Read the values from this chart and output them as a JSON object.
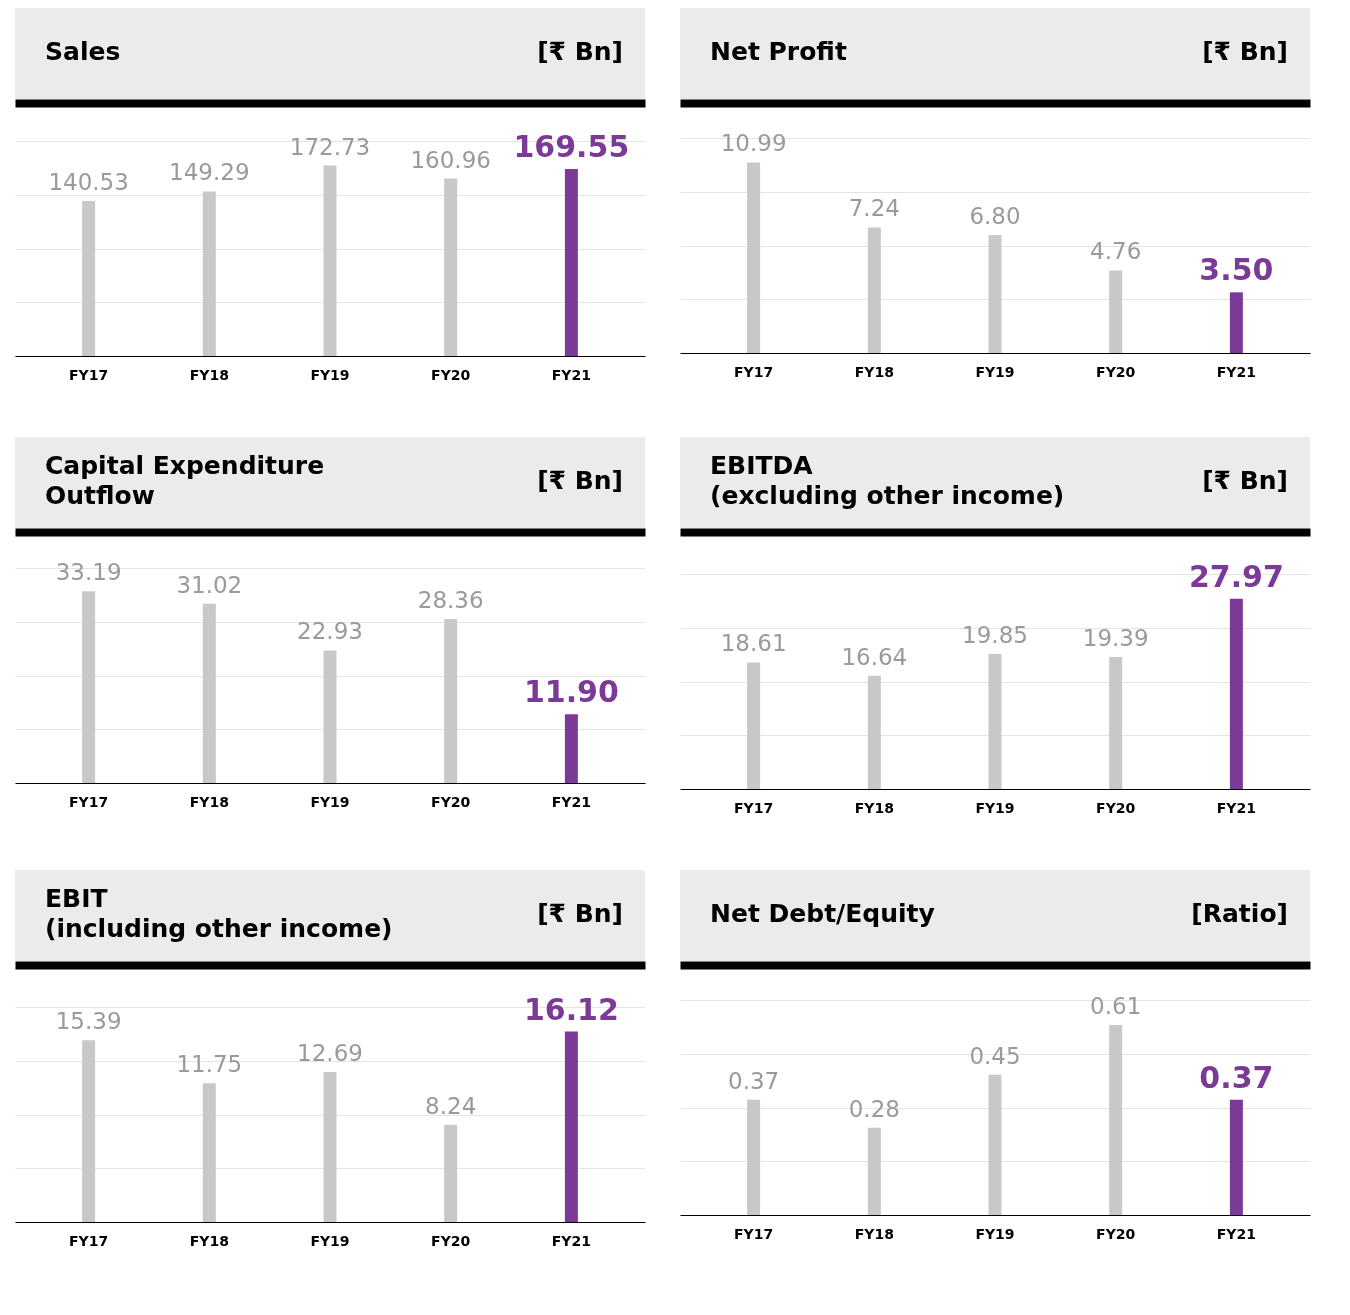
{
  "chart_data": [
    {
      "type": "bar",
      "title": "Sales",
      "ylabel": "[₹ Bn]",
      "categories": [
        "FY17",
        "FY18",
        "FY19",
        "FY20",
        "FY21"
      ],
      "values": [
        140.53,
        149.29,
        172.73,
        160.96,
        169.55
      ],
      "value_labels": [
        "140.53",
        "149.29",
        "172.73",
        "160.96",
        "169.55"
      ],
      "colors": [
        "#c8c8c8",
        "#c8c8c8",
        "#c8c8c8",
        "#c8c8c8",
        "#7b3a96"
      ],
      "ylim": [
        0,
        195
      ],
      "yticks": [
        {
          "value": 0,
          "label": null
        },
        {
          "value": 48.75,
          "label": null
        },
        {
          "value": 97.5,
          "label": null
        },
        {
          "value": 146.25,
          "label": null
        },
        {
          "value": 195,
          "label": null
        }
      ],
      "grid": "y",
      "tick_labels": "x"
    },
    {
      "type": "bar",
      "title": "Net Profit",
      "ylabel": "[₹ Bn]",
      "categories": [
        "FY17",
        "FY18",
        "FY19",
        "FY20",
        "FY21"
      ],
      "values": [
        10.99,
        7.24,
        6.8,
        4.76,
        3.5
      ],
      "value_labels": [
        "10.99",
        "7.24",
        "6.80",
        "4.76",
        "3.50"
      ],
      "colors": [
        "#c8c8c8",
        "#c8c8c8",
        "#c8c8c8",
        "#c8c8c8",
        "#7b3a96"
      ],
      "ylim": [
        0,
        12.4
      ],
      "yticks": [
        {
          "value": 0,
          "label": null
        },
        {
          "value": 3.1,
          "label": null
        },
        {
          "value": 6.2,
          "label": null
        },
        {
          "value": 9.3,
          "label": null
        },
        {
          "value": 12.4,
          "label": null
        }
      ],
      "grid": "y",
      "tick_labels": "x"
    },
    {
      "type": "bar",
      "title": "Capital Expenditure\nOutflow",
      "ylabel": "[₹ Bn]",
      "categories": [
        "FY17",
        "FY18",
        "FY19",
        "FY20",
        "FY21"
      ],
      "values": [
        33.19,
        31.02,
        22.93,
        28.36,
        11.9
      ],
      "value_labels": [
        "33.19",
        "31.02",
        "22.93",
        "28.36",
        "11.90"
      ],
      "colors": [
        "#c8c8c8",
        "#c8c8c8",
        "#c8c8c8",
        "#c8c8c8",
        "#7b3a96"
      ],
      "ylim": [
        0,
        37.2
      ],
      "yticks": [
        {
          "value": 0,
          "label": null
        },
        {
          "value": 9.3,
          "label": null
        },
        {
          "value": 18.6,
          "label": null
        },
        {
          "value": 27.9,
          "label": null
        },
        {
          "value": 37.2,
          "label": null
        }
      ],
      "grid": "y",
      "tick_labels": "x"
    },
    {
      "type": "bar",
      "title": "EBITDA\n(excluding other income)",
      "ylabel": "[₹ Bn]",
      "categories": [
        "FY17",
        "FY18",
        "FY19",
        "FY20",
        "FY21"
      ],
      "values": [
        18.61,
        16.64,
        19.85,
        19.39,
        27.97
      ],
      "value_labels": [
        "18.61",
        "16.64",
        "19.85",
        "19.39",
        "27.97"
      ],
      "colors": [
        "#c8c8c8",
        "#c8c8c8",
        "#c8c8c8",
        "#c8c8c8",
        "#7b3a96"
      ],
      "ylim": [
        0,
        31.6
      ],
      "yticks": [
        {
          "value": 0,
          "label": null
        },
        {
          "value": 7.9,
          "label": null
        },
        {
          "value": 15.8,
          "label": null
        },
        {
          "value": 23.7,
          "label": null
        },
        {
          "value": 31.6,
          "label": null
        }
      ],
      "grid": "y",
      "tick_labels": "x"
    },
    {
      "type": "bar",
      "title": "EBIT\n(including other income)",
      "ylabel": "[₹ Bn]",
      "categories": [
        "FY17",
        "FY18",
        "FY19",
        "FY20",
        "FY21"
      ],
      "values": [
        15.39,
        11.75,
        12.69,
        8.24,
        16.12
      ],
      "value_labels": [
        "15.39",
        "11.75",
        "12.69",
        "8.24",
        "16.12"
      ],
      "colors": [
        "#c8c8c8",
        "#c8c8c8",
        "#c8c8c8",
        "#c8c8c8",
        "#7b3a96"
      ],
      "ylim": [
        0,
        18.2
      ],
      "yticks": [
        {
          "value": 0,
          "label": null
        },
        {
          "value": 4.55,
          "label": null
        },
        {
          "value": 9.1,
          "label": null
        },
        {
          "value": 13.65,
          "label": null
        },
        {
          "value": 18.2,
          "label": null
        }
      ],
      "grid": "y",
      "tick_labels": "x"
    },
    {
      "type": "bar",
      "title": "Net Debt/Equity",
      "ylabel": "[Ratio]",
      "categories": [
        "FY17",
        "FY18",
        "FY19",
        "FY20",
        "FY21"
      ],
      "values": [
        0.37,
        0.28,
        0.45,
        0.61,
        0.37
      ],
      "value_labels": [
        "0.37",
        "0.28",
        "0.45",
        "0.61",
        "0.37"
      ],
      "colors": [
        "#c8c8c8",
        "#c8c8c8",
        "#c8c8c8",
        "#c8c8c8",
        "#7b3a96"
      ],
      "ylim": [
        0,
        0.69
      ],
      "yticks": [
        {
          "value": 0,
          "label": null
        },
        {
          "value": 0.1725,
          "label": null
        },
        {
          "value": 0.345,
          "label": null
        },
        {
          "value": 0.5175,
          "label": null
        },
        {
          "value": 0.69,
          "label": null
        }
      ],
      "grid": "y",
      "tick_labels": "x"
    }
  ]
}
